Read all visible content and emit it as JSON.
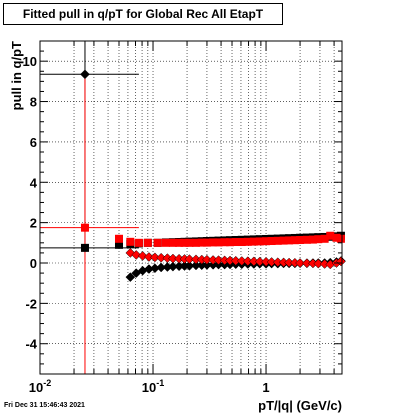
{
  "chart_data": {
    "type": "scatter",
    "title": "Fitted pull in q/pT for Global Rec All EtapT",
    "xlabel": "pT/|q| (GeV/c)",
    "ylabel": "pull in q/pT",
    "xscale": "log",
    "xlim": [
      0.01,
      4.7
    ],
    "ylim": [
      -5.5,
      11
    ],
    "grid": true,
    "x_ticks": [
      {
        "value": 0.01,
        "label": "10",
        "sup": "-2"
      },
      {
        "value": 0.1,
        "label": "10",
        "sup": "-1"
      },
      {
        "value": 1,
        "label": "1",
        "sup": ""
      }
    ],
    "y_ticks": [
      -4,
      -2,
      0,
      2,
      4,
      6,
      8,
      10
    ],
    "series": [
      {
        "color": "#000000",
        "marker": "diamond",
        "points": [
          [
            0.025,
            9.35
          ],
          [
            0.063,
            -0.7
          ],
          [
            0.071,
            -0.5
          ],
          [
            0.081,
            -0.38
          ],
          [
            0.092,
            -0.3
          ],
          [
            0.104,
            -0.26
          ],
          [
            0.118,
            -0.22
          ],
          [
            0.134,
            -0.2
          ],
          [
            0.15,
            -0.18
          ],
          [
            0.17,
            -0.16
          ],
          [
            0.19,
            -0.15
          ],
          [
            0.21,
            -0.14
          ],
          [
            0.24,
            -0.12
          ],
          [
            0.27,
            -0.11
          ],
          [
            0.3,
            -0.1
          ],
          [
            0.34,
            -0.09
          ],
          [
            0.38,
            -0.08
          ],
          [
            0.43,
            -0.08
          ],
          [
            0.48,
            -0.07
          ],
          [
            0.54,
            -0.06
          ],
          [
            0.61,
            -0.06
          ],
          [
            0.69,
            -0.05
          ],
          [
            0.78,
            -0.05
          ],
          [
            0.88,
            -0.04
          ],
          [
            1.0,
            -0.04
          ],
          [
            1.12,
            -0.03
          ],
          [
            1.27,
            -0.03
          ],
          [
            1.43,
            -0.02
          ],
          [
            1.6,
            -0.02
          ],
          [
            1.8,
            -0.02
          ],
          [
            2.0,
            -0.01
          ],
          [
            2.3,
            -0.01
          ],
          [
            2.6,
            0.0
          ],
          [
            2.9,
            0.0
          ],
          [
            3.3,
            0.0
          ],
          [
            3.7,
            0.02
          ],
          [
            4.2,
            0.05
          ],
          [
            4.6,
            0.1
          ]
        ]
      },
      {
        "color": "#000000",
        "marker": "square",
        "points": [
          [
            0.025,
            0.75
          ],
          [
            0.05,
            0.9
          ],
          [
            0.063,
            0.95
          ],
          [
            0.075,
            0.97
          ],
          [
            0.09,
            1.0
          ],
          [
            0.11,
            1.0
          ],
          [
            0.13,
            1.02
          ],
          [
            0.15,
            1.03
          ],
          [
            0.17,
            1.04
          ],
          [
            0.19,
            1.05
          ],
          [
            0.21,
            1.06
          ],
          [
            0.24,
            1.07
          ],
          [
            0.27,
            1.08
          ],
          [
            0.3,
            1.09
          ],
          [
            0.34,
            1.1
          ],
          [
            0.38,
            1.11
          ],
          [
            0.43,
            1.12
          ],
          [
            0.48,
            1.13
          ],
          [
            0.54,
            1.14
          ],
          [
            0.61,
            1.15
          ],
          [
            0.69,
            1.16
          ],
          [
            0.78,
            1.17
          ],
          [
            0.88,
            1.18
          ],
          [
            1.0,
            1.19
          ],
          [
            1.12,
            1.2
          ],
          [
            1.27,
            1.21
          ],
          [
            1.43,
            1.22
          ],
          [
            1.6,
            1.23
          ],
          [
            1.8,
            1.24
          ],
          [
            2.0,
            1.25
          ],
          [
            2.3,
            1.26
          ],
          [
            2.6,
            1.27
          ],
          [
            2.9,
            1.28
          ],
          [
            3.3,
            1.29
          ],
          [
            3.7,
            1.3
          ],
          [
            4.2,
            1.32
          ],
          [
            4.6,
            1.35
          ]
        ]
      },
      {
        "color": "#ff0000",
        "marker": "square",
        "points": [
          [
            0.025,
            1.75
          ],
          [
            0.05,
            1.2
          ],
          [
            0.063,
            1.05
          ],
          [
            0.075,
            1.0
          ],
          [
            0.09,
            1.0
          ],
          [
            0.11,
            1.0
          ],
          [
            0.13,
            1.0
          ],
          [
            0.15,
            1.0
          ],
          [
            0.17,
            1.0
          ],
          [
            0.19,
            1.0
          ],
          [
            0.21,
            1.0
          ],
          [
            0.24,
            1.0
          ],
          [
            0.27,
            1.01
          ],
          [
            0.3,
            1.01
          ],
          [
            0.34,
            1.02
          ],
          [
            0.38,
            1.02
          ],
          [
            0.43,
            1.03
          ],
          [
            0.48,
            1.03
          ],
          [
            0.54,
            1.04
          ],
          [
            0.61,
            1.04
          ],
          [
            0.69,
            1.05
          ],
          [
            0.78,
            1.06
          ],
          [
            0.88,
            1.07
          ],
          [
            1.0,
            1.08
          ],
          [
            1.12,
            1.09
          ],
          [
            1.27,
            1.1
          ],
          [
            1.43,
            1.11
          ],
          [
            1.6,
            1.12
          ],
          [
            1.8,
            1.13
          ],
          [
            2.0,
            1.14
          ],
          [
            2.3,
            1.15
          ],
          [
            2.6,
            1.16
          ],
          [
            2.9,
            1.18
          ],
          [
            3.3,
            1.2
          ],
          [
            3.7,
            1.35
          ],
          [
            4.2,
            1.25
          ],
          [
            4.6,
            1.2
          ]
        ]
      },
      {
        "color": "#ff0000",
        "marker": "diamond",
        "points": [
          [
            0.063,
            0.5
          ],
          [
            0.071,
            0.4
          ],
          [
            0.081,
            0.35
          ],
          [
            0.092,
            0.3
          ],
          [
            0.104,
            0.28
          ],
          [
            0.118,
            0.26
          ],
          [
            0.134,
            0.24
          ],
          [
            0.15,
            0.22
          ],
          [
            0.17,
            0.21
          ],
          [
            0.19,
            0.2
          ],
          [
            0.21,
            0.19
          ],
          [
            0.24,
            0.18
          ],
          [
            0.27,
            0.17
          ],
          [
            0.3,
            0.16
          ],
          [
            0.34,
            0.15
          ],
          [
            0.38,
            0.14
          ],
          [
            0.43,
            0.13
          ],
          [
            0.48,
            0.12
          ],
          [
            0.54,
            0.11
          ],
          [
            0.61,
            0.1
          ],
          [
            0.69,
            0.09
          ],
          [
            0.78,
            0.08
          ],
          [
            0.88,
            0.07
          ],
          [
            1.0,
            0.06
          ],
          [
            1.12,
            0.05
          ],
          [
            1.27,
            0.04
          ],
          [
            1.43,
            0.03
          ],
          [
            1.6,
            0.02
          ],
          [
            1.8,
            0.01
          ],
          [
            2.0,
            0.0
          ],
          [
            2.3,
            -0.01
          ],
          [
            2.6,
            -0.02
          ],
          [
            2.9,
            -0.03
          ],
          [
            3.3,
            -0.05
          ],
          [
            3.7,
            -0.07
          ],
          [
            4.2,
            0.0
          ],
          [
            4.6,
            0.08
          ]
        ]
      }
    ],
    "error_bars": [
      {
        "color": "#000000",
        "x": 0.025,
        "y": 9.35,
        "xerr_lo": 0.015,
        "xerr_hi": 0.05,
        "yerr": 8.85
      },
      {
        "color": "#ff0000",
        "x": 0.025,
        "y": 1.75,
        "xerr_lo": 0.015,
        "xerr_hi": 0.05,
        "yerr": 7.5
      },
      {
        "color": "#000000",
        "x": 0.025,
        "y": 0.75,
        "xerr_lo": 0.015,
        "xerr_hi": 0.05,
        "yerr": 0
      }
    ]
  },
  "footer": {
    "timestamp": "Fri Dec 31 15:46:43 2021"
  }
}
